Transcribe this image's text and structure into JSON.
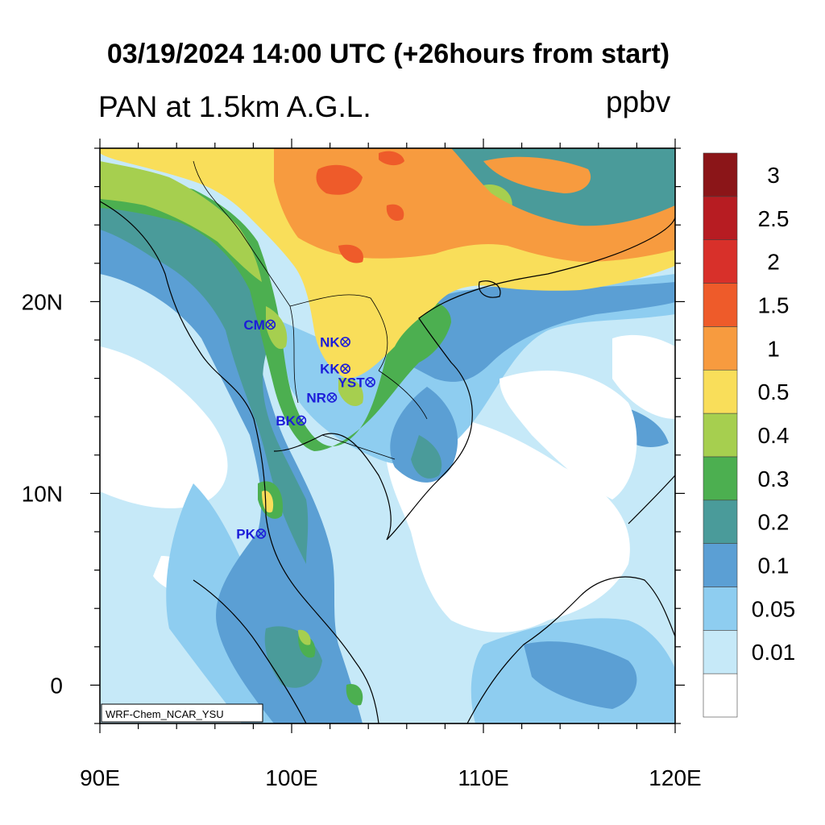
{
  "title": "03/19/2024 14:00 UTC (+26hours from start)",
  "subtitle_left": "PAN at 1.5km A.G.L.",
  "units": "ppbv",
  "watermark": "WRF-Chem_NCAR_YSU",
  "map": {
    "lon_range": [
      90,
      120
    ],
    "lat_range": [
      -2,
      28
    ],
    "lon_ticks": [
      {
        "value": 90,
        "label": "90E"
      },
      {
        "value": 100,
        "label": "100E"
      },
      {
        "value": 110,
        "label": "110E"
      },
      {
        "value": 120,
        "label": "120E"
      }
    ],
    "lat_ticks": [
      {
        "value": 0,
        "label": "0"
      },
      {
        "value": 10,
        "label": "10N"
      },
      {
        "value": 20,
        "label": "20N"
      }
    ]
  },
  "legend": {
    "levels": [
      {
        "label": "",
        "color": "#ffffff"
      },
      {
        "label": "0.01",
        "color": "#c6e9f8"
      },
      {
        "label": "0.05",
        "color": "#8ecdf0"
      },
      {
        "label": "0.1",
        "color": "#5b9fd4"
      },
      {
        "label": "0.2",
        "color": "#4a9b9a"
      },
      {
        "label": "0.3",
        "color": "#4caf50"
      },
      {
        "label": "0.4",
        "color": "#a6cf4f"
      },
      {
        "label": "0.5",
        "color": "#f9de5a"
      },
      {
        "label": "1",
        "color": "#f79b3f"
      },
      {
        "label": "1.5",
        "color": "#ee5b2a"
      },
      {
        "label": "2",
        "color": "#d8302a"
      },
      {
        "label": "2.5",
        "color": "#b71c22"
      },
      {
        "label": "3",
        "color": "#8b1518"
      }
    ]
  },
  "sites": [
    {
      "label": "CM",
      "lon": 98.9,
      "lat": 18.8
    },
    {
      "label": "NK",
      "lon": 102.8,
      "lat": 17.9
    },
    {
      "label": "KK",
      "lon": 102.8,
      "lat": 16.5
    },
    {
      "label": "YST",
      "lon": 104.1,
      "lat": 15.8
    },
    {
      "label": "NR",
      "lon": 102.1,
      "lat": 15.0
    },
    {
      "label": "BK",
      "lon": 100.5,
      "lat": 13.8
    },
    {
      "label": "PK",
      "lon": 98.4,
      "lat": 7.9
    }
  ]
}
